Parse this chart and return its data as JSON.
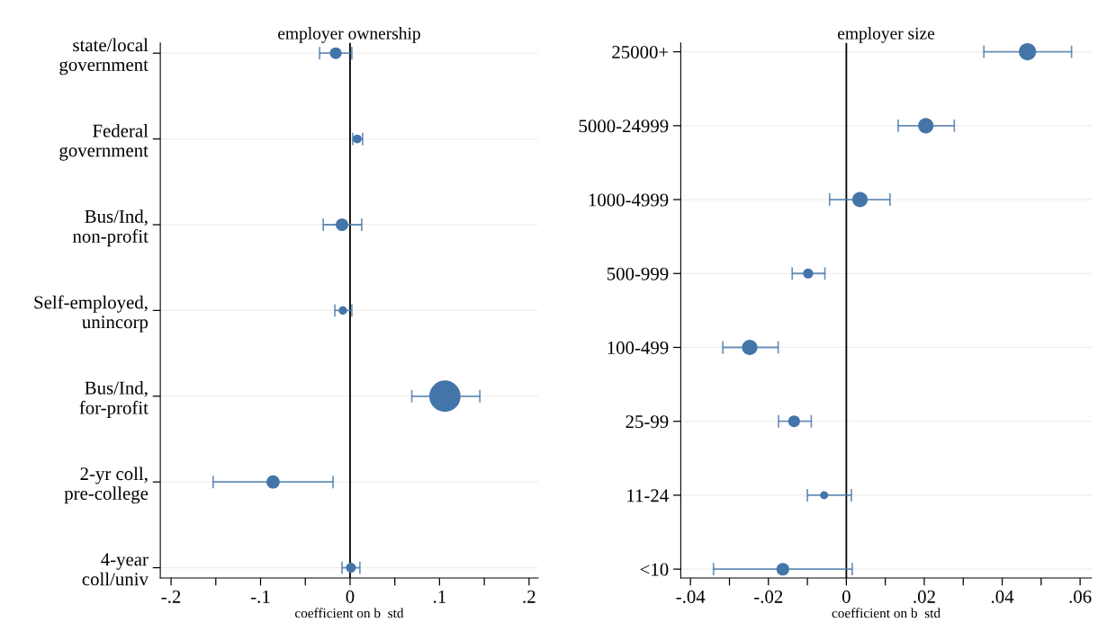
{
  "chart_data": [
    {
      "type": "bubble",
      "orientation": "horizontal",
      "title": "employer ownership",
      "xlabel": "coefficient on b  std",
      "categories": [
        "state/local\ngovernment",
        "Federal\ngovernment",
        "Bus/Ind,\nnon-profit",
        "Self-employed,\nunincorp",
        "Bus/Ind,\nfor-profit",
        "2-yr coll,\npre-college",
        "4-year\ncoll/univ"
      ],
      "values": [
        -0.016,
        0.008,
        -0.009,
        -0.008,
        0.106,
        -0.086,
        0.001
      ],
      "errors": [
        [
          -0.034,
          0.002
        ],
        [
          0.003,
          0.014
        ],
        [
          -0.03,
          0.013
        ],
        [
          -0.017,
          0.002
        ],
        [
          0.069,
          0.145
        ],
        [
          -0.153,
          -0.019
        ],
        [
          -0.009,
          0.011
        ]
      ],
      "sizes": [
        0.14,
        0.08,
        0.16,
        0.07,
        1,
        0.18,
        0.1
      ],
      "color": "#4475a9",
      "xlim": [
        -0.212,
        0.21
      ],
      "xticks": [
        {
          "value": -0.2,
          "label": "-.2"
        },
        {
          "value": -0.15,
          "label": null
        },
        {
          "value": -0.1,
          "label": "-.1"
        },
        {
          "value": -0.05,
          "label": null
        },
        0,
        {
          "value": 0.05,
          "label": null
        },
        {
          "value": 0.1,
          "label": ".1"
        },
        {
          "value": 0.15,
          "label": null
        },
        {
          "value": 0.2,
          "label": ".2"
        }
      ],
      "ref_lines": [
        {
          "axis": "x",
          "value": 0,
          "color": "#000000"
        }
      ],
      "grid": "y",
      "legend": false
    },
    {
      "type": "bubble",
      "orientation": "horizontal",
      "title": "employer size",
      "xlabel": "coefficient on b  std",
      "categories": [
        "25000+",
        "5000-24999",
        "1000-4999",
        "500-999",
        "100-499",
        "25-99",
        "11-24",
        "<10"
      ],
      "values": [
        0.0465,
        0.0204,
        0.0035,
        -0.0098,
        -0.0248,
        -0.0134,
        -0.0057,
        -0.0163
      ],
      "errors": [
        [
          0.0353,
          0.0578
        ],
        [
          0.0133,
          0.0277
        ],
        [
          -0.0043,
          0.0112
        ],
        [
          -0.0139,
          -0.0055
        ],
        [
          -0.0317,
          -0.0175
        ],
        [
          -0.0174,
          -0.009
        ],
        [
          -0.01,
          0.0013
        ],
        [
          -0.0341,
          0.0015
        ]
      ],
      "sizes": [
        1,
        0.8,
        0.8,
        0.34,
        0.8,
        0.47,
        0.22,
        0.54
      ],
      "color": "#4475a9",
      "xlim": [
        -0.0425,
        0.0629
      ],
      "xticks": [
        {
          "value": -0.04,
          "label": "-.04"
        },
        {
          "value": -0.03,
          "label": null
        },
        {
          "value": -0.02,
          "label": "-.02"
        },
        {
          "value": -0.01,
          "label": null
        },
        0,
        {
          "value": 0.01,
          "label": null
        },
        {
          "value": 0.02,
          "label": ".02"
        },
        {
          "value": 0.03,
          "label": null
        },
        {
          "value": 0.04,
          "label": ".04"
        },
        {
          "value": 0.05,
          "label": null
        },
        {
          "value": 0.06,
          "label": ".06"
        }
      ],
      "ref_lines": [
        {
          "axis": "x",
          "value": 0,
          "color": "#000000"
        }
      ],
      "grid": "y",
      "legend": false
    }
  ]
}
